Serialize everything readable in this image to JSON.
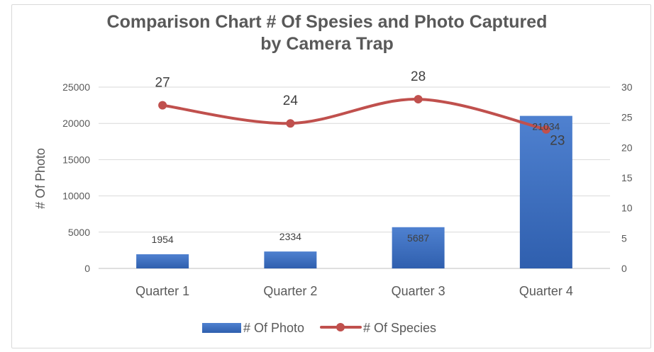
{
  "chart_data": {
    "type": "bar",
    "title_lines": [
      "Comparison Chart # Of Spesies and Photo Captured",
      "by Camera Trap"
    ],
    "categories": [
      "Quarter 1",
      "Quarter 2",
      "Quarter 3",
      "Quarter 4"
    ],
    "ylabel": "# Of Photo",
    "ylim": [
      0,
      25000
    ],
    "yticks": [
      "0",
      "5000",
      "10000",
      "15000",
      "20000",
      "25000"
    ],
    "y2lim": [
      0,
      30
    ],
    "y2ticks": [
      "0",
      "5",
      "10",
      "15",
      "20",
      "25",
      "30"
    ],
    "grid": true,
    "legend_position": "bottom",
    "series": [
      {
        "name": "# Of Photo",
        "type": "bar",
        "axis": "left",
        "color": "#4472c4",
        "values": [
          1954,
          2334,
          5687,
          21034
        ],
        "labels": [
          "1954",
          "2334",
          "5687",
          "21034"
        ]
      },
      {
        "name": "# Of Species",
        "type": "line",
        "axis": "right",
        "smooth": true,
        "color": "#c0504d",
        "values": [
          27,
          24,
          28,
          23
        ],
        "labels": [
          "27",
          "24",
          "28",
          "23"
        ]
      }
    ]
  }
}
